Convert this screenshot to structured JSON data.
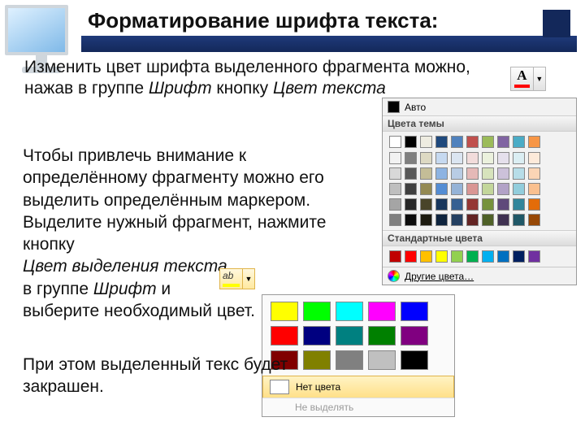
{
  "title": "Форматирование шрифта текста:",
  "para1_a": "Изменить цвет шрифта выделенного фрагмента можно, нажав в группе ",
  "para1_b": "Шрифт",
  "para1_c": " кнопку ",
  "para1_d": "Цвет текста",
  "para2_a": "Чтобы привлечь внимание к определённому фрагменту можно его выделить определённым маркером. Выделите нужный фрагмент, нажмите кнопку",
  "para2_b": "Цвет выделения текста",
  "para2_c": "в группе ",
  "para2_d": "Шрифт",
  "para2_e": " и",
  "para2_f": "выберите необходимый цвет.",
  "para3": "При этом выделенный текс будет закрашен.",
  "font_btn_letter": "А",
  "hl_btn_label": "ab",
  "picker1": {
    "auto_label": "Авто",
    "auto_swatch": "#000000",
    "theme_header": "Цвета темы",
    "theme_top": [
      "#ffffff",
      "#000000",
      "#eeece1",
      "#1f497d",
      "#4f81bd",
      "#c0504d",
      "#9bbb59",
      "#8064a2",
      "#4bacc6",
      "#f79646"
    ],
    "theme_rows": [
      [
        "#f2f2f2",
        "#7f7f7f",
        "#ddd9c3",
        "#c6d9f0",
        "#dbe5f1",
        "#f2dcdb",
        "#ebf1dd",
        "#e5e0ec",
        "#dbeef3",
        "#fdeada"
      ],
      [
        "#d8d8d8",
        "#595959",
        "#c4bd97",
        "#8db3e2",
        "#b8cce4",
        "#e5b9b7",
        "#d7e3bc",
        "#ccc1d9",
        "#b7dde8",
        "#fbd5b5"
      ],
      [
        "#bfbfbf",
        "#3f3f3f",
        "#938953",
        "#548dd4",
        "#95b3d7",
        "#d99694",
        "#c3d69b",
        "#b2a2c7",
        "#92cddc",
        "#fac08f"
      ],
      [
        "#a5a5a5",
        "#262626",
        "#494429",
        "#17365d",
        "#366092",
        "#953734",
        "#76923c",
        "#5f497a",
        "#31859b",
        "#e36c09"
      ],
      [
        "#7f7f7f",
        "#0c0c0c",
        "#1d1b10",
        "#0f243e",
        "#244061",
        "#632423",
        "#4f6128",
        "#3f3151",
        "#205867",
        "#974806"
      ]
    ],
    "std_header": "Стандартные цвета",
    "std": [
      "#c00000",
      "#ff0000",
      "#ffc000",
      "#ffff00",
      "#92d050",
      "#00b050",
      "#00b0f0",
      "#0070c0",
      "#002060",
      "#7030a0"
    ],
    "more_label": "Другие цвета…"
  },
  "picker2": {
    "colors": [
      [
        "#ffff00",
        "#00ff00",
        "#00ffff",
        "#ff00ff",
        "#0000ff"
      ],
      [
        "#ff0000",
        "#000080",
        "#008080",
        "#008000",
        "#800080"
      ],
      [
        "#800000",
        "#808000",
        "#808080",
        "#c0c0c0",
        "#000000"
      ]
    ],
    "no_color_label": "Нет цвета",
    "no_color_swatch": "#ffffff",
    "stop_label": "Не выделять"
  }
}
